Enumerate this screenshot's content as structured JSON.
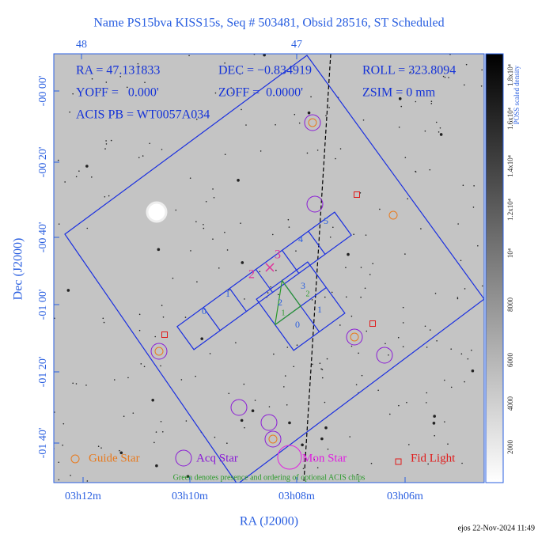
{
  "title": "Name PS15bva KISS15s, Seq # 503481, Obsid 28516, ST Scheduled",
  "info": {
    "ra": "RA = 47.131833",
    "dec": "DEC = −0.834919",
    "roll": "ROLL = 323.8094",
    "yoff": "YOFF =   0.000'",
    "zoff": "ZOFF =  0.0000'",
    "zsim": "ZSIM = 0 mm",
    "acis": "ACIS PB = WT0057A034"
  },
  "top_axis_ticks": [
    "48",
    "47"
  ],
  "x_axis": {
    "label": "RA (J2000)",
    "ticks": [
      "03h12m",
      "03h10m",
      "03h08m",
      "03h06m"
    ]
  },
  "y_axis": {
    "label": "Dec (J2000)",
    "ticks": [
      "-00 00'",
      "-00 20'",
      "-00 40'",
      "-01 00'",
      "-01 20'",
      "-01 40'"
    ]
  },
  "colorbar": {
    "label": "POSS scaled density",
    "ticks": [
      "2000",
      "4000",
      "6000",
      "8000",
      "10⁴",
      "1.2x10⁴",
      "1.4x10⁴",
      "1.6x10⁴",
      "1.8x10⁴"
    ]
  },
  "acis_s_chips": [
    "0",
    "1",
    "2",
    "3",
    "4",
    "5"
  ],
  "acis_i_chips": [
    "0",
    "1",
    "2",
    "3"
  ],
  "optional_chips": [
    "1",
    "2"
  ],
  "aimpoint_labels": [
    "2",
    "3"
  ],
  "legend": [
    "Guide Star",
    "Acq Star",
    "Mon Star",
    "Fid Light"
  ],
  "note": "Green denotes presence and ordering of optional ACIS chips",
  "footer": "ejos 22-Nov-2024 11:49"
}
